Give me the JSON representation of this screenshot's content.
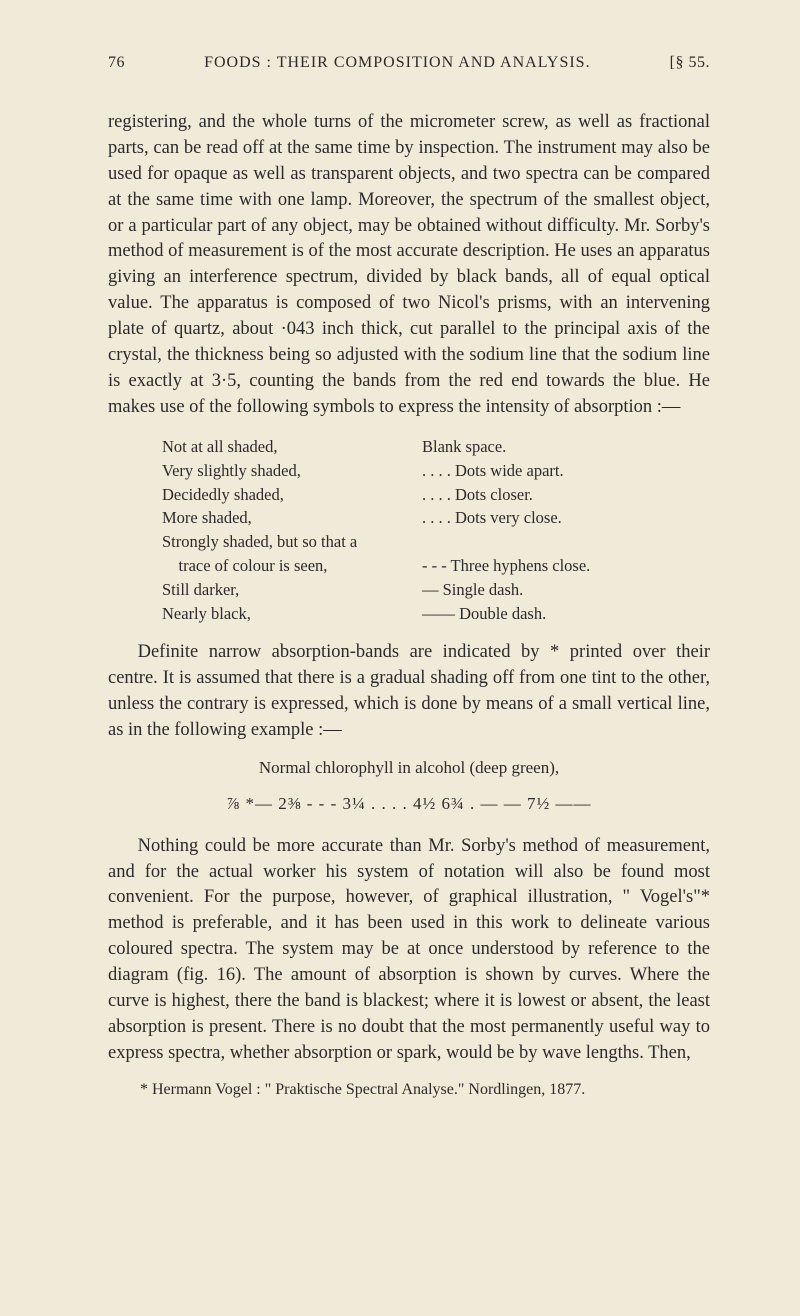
{
  "header": {
    "page_no": "76",
    "running_title": "FOODS : THEIR COMPOSITION AND ANALYSIS.",
    "section_ref": "[§ 55."
  },
  "para1": "registering, and the whole turns of the micrometer screw, as well as fractional parts, can be read off at the same time by inspection. The instrument may also be used for opaque as well as trans­parent objects, and two spectra can be compared at the same time with one lamp. Moreover, the spectrum of the smallest object, or a particular part of any object, may be obtained with­out difficulty. Mr. Sorby's method of measurement is of the most accurate description. He uses an apparatus giving an inter­ference spectrum, divided by black bands, all of equal optical value. The apparatus is composed of two Nicol's prisms, with an intervening plate of quartz, about ·043 inch thick, cut parallel to the principal axis of the crystal, the thickness being so adjusted with the sodium line that the sodium line is exactly at 3·5, counting the bands from the red end towards the blue. He makes use of the following symbols to express the intensity of absorption :—",
  "symbols": [
    {
      "left": "Not at all shaded,",
      "right": "Blank space."
    },
    {
      "left": "Very slightly shaded,",
      "right": ".  .  .  . Dots wide apart."
    },
    {
      "left": "Decidedly shaded,",
      "right": ". . . . Dots closer."
    },
    {
      "left": "More shaded,",
      "right": ". . . . Dots very close."
    },
    {
      "left": "Strongly shaded, but so that a",
      "right": ""
    },
    {
      "left": "    trace of colour is seen,",
      "right": "- - - Three hyphens close."
    },
    {
      "left": "Still darker,",
      "right": "— Single dash."
    },
    {
      "left": "Nearly black,",
      "right": "—— Double dash."
    }
  ],
  "para2": "Definite narrow absorption-bands are indicated by * printed over their centre. It is assumed that there is a gradual shading off from one tint to the other, unless the contrary is expressed, which is done by means of a small vertical line, as in the follow­ing example :—",
  "centered1": "Normal chlorophyll in alcohol (deep green),",
  "formula": "⅞ *— 2⅜ - - - 3¼ . . . . 4½ 6¾ . — — 7½ ——",
  "para3": "Nothing could be more accurate than Mr. Sorby's method of measurement, and for the actual worker his system of notation will also be found most convenient. For the purpose, however, of graphical illustration, \" Vogel's\"* method is preferable, and it has been used in this work to delineate various coloured spectra. The system may be at once understood by reference to the diagram (fig. 16). The amount of absorption is shown by curves. Where the curve is highest, there the band is blackest; where it is lowest or absent, the least absorption is present. There is no doubt that the most permanently useful way to express spectra, whether absorption or spark, would be by wave lengths. Then,",
  "footnote": "* Hermann Vogel : \" Praktische Spectral Analyse.\" Nordlingen, 1877."
}
